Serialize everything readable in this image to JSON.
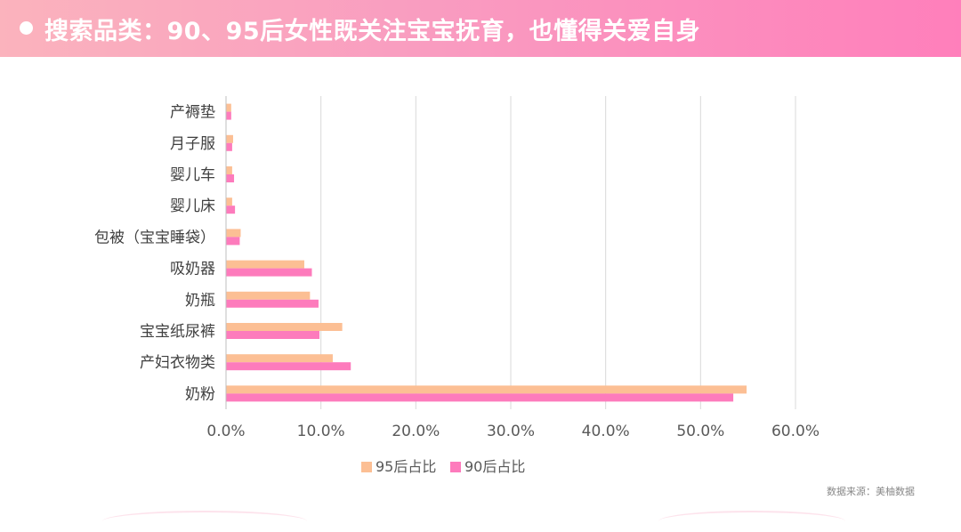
{
  "header": {
    "title": "搜索品类：90、95后女性既关注宝宝抚育，也懂得关爱自身"
  },
  "source": "数据来源：美柚数据",
  "chart_data": {
    "type": "bar",
    "orientation": "horizontal",
    "categories": [
      "产褥垫",
      "月子服",
      "婴儿车",
      "婴儿床",
      "包被（宝宝睡袋）",
      "吸奶器",
      "奶瓶",
      "宝宝纸尿裤",
      "产妇衣物类",
      "奶粉"
    ],
    "series": [
      {
        "name": "95后占比",
        "color": "#fcbf94",
        "values": [
          0.5,
          0.7,
          0.6,
          0.6,
          1.5,
          8.2,
          8.8,
          12.2,
          11.2,
          54.8
        ]
      },
      {
        "name": "90后占比",
        "color": "#fd7bbc",
        "values": [
          0.5,
          0.6,
          0.8,
          0.9,
          1.4,
          9.0,
          9.7,
          9.8,
          13.1,
          53.4
        ]
      }
    ],
    "xlim": [
      0,
      60
    ],
    "xticks": [
      "0.0%",
      "10.0%",
      "20.0%",
      "30.0%",
      "40.0%",
      "50.0%",
      "60.0%"
    ],
    "grid": true,
    "legend_position": "bottom"
  }
}
